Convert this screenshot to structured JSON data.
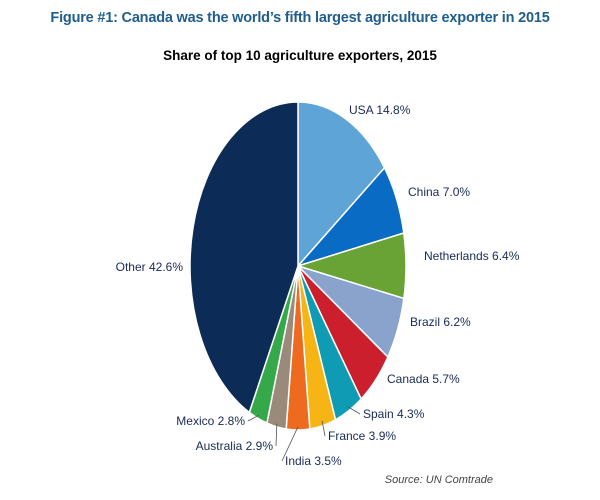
{
  "figure_title": "Figure #1: Canada was the world’s fifth largest agriculture exporter in 2015",
  "source": "Source: UN Comtrade",
  "chart_data": {
    "type": "pie",
    "title": "Share of top 10 agriculture exporters, 2015",
    "unit": "%",
    "slices": [
      {
        "label": "USA",
        "value": 14.8,
        "display": "USA 14.8%",
        "color": "#5fa4d6"
      },
      {
        "label": "China",
        "value": 7.0,
        "display": "China 7.0%",
        "color": "#0a6bc4"
      },
      {
        "label": "Netherlands",
        "value": 6.4,
        "display": "Netherlands 6.4%",
        "color": "#6aa335"
      },
      {
        "label": "Brazil",
        "value": 6.2,
        "display": "Brazil 6.2%",
        "color": "#8aa3cd"
      },
      {
        "label": "Canada",
        "value": 5.7,
        "display": "Canada 5.7%",
        "color": "#cc1f2e"
      },
      {
        "label": "Spain",
        "value": 4.3,
        "display": "Spain 4.3%",
        "color": "#0f9bb4"
      },
      {
        "label": "France",
        "value": 3.9,
        "display": "France 3.9%",
        "color": "#f6b515"
      },
      {
        "label": "India",
        "value": 3.5,
        "display": "India 3.5%",
        "color": "#ee6a1f"
      },
      {
        "label": "Australia",
        "value": 2.9,
        "display": "Australia 2.9%",
        "color": "#9a8a7a"
      },
      {
        "label": "Mexico",
        "value": 2.8,
        "display": "Mexico 2.8%",
        "color": "#35a94a"
      },
      {
        "label": "Other",
        "value": 42.6,
        "display": "Other 42.6%",
        "color": "#0c2b57"
      }
    ]
  }
}
